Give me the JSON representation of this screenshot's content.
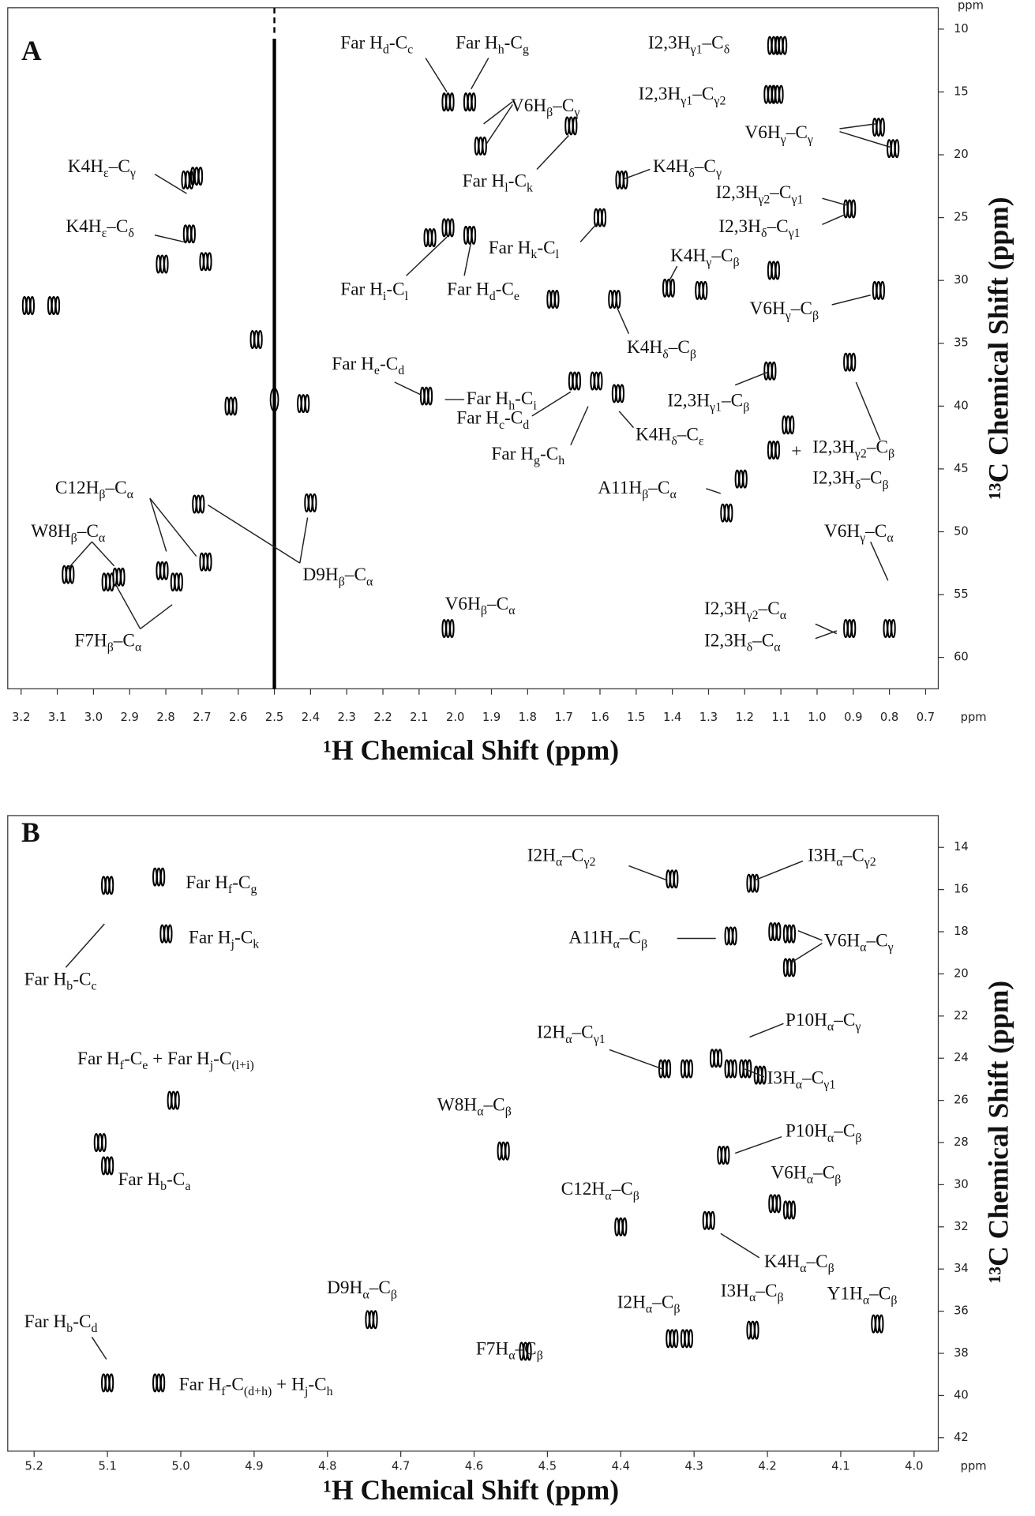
{
  "chart_data": [
    {
      "type": "scatter",
      "label": "A",
      "xlabel": "¹H Chemical Shift (ppm)",
      "ylabel": "¹³C Chemical Shift (ppm)",
      "x_unit": "ppm",
      "y_unit": "ppm",
      "xlim": [
        3.237,
        0.665
      ],
      "ylim": [
        8.3,
        62.5
      ],
      "xticks": [
        3.2,
        3.1,
        {
          "value": 3,
          "label": "3.0"
        },
        2.9,
        2.8,
        2.7,
        2.6,
        2.5,
        2.4,
        2.3,
        2.2,
        2.1,
        {
          "value": 2,
          "label": "2.0"
        },
        1.9,
        1.8,
        1.7,
        1.6,
        1.5,
        1.4,
        1.3,
        1.2,
        1.1,
        {
          "value": 1,
          "label": "1.0"
        },
        0.9,
        0.8,
        0.7
      ],
      "yticks": [
        10,
        15,
        20,
        25,
        30,
        35,
        40,
        45,
        50,
        55,
        60
      ],
      "vlines": [
        2.5
      ],
      "color": "#000000",
      "x": [
        3.18,
        3.11,
        2.81,
        2.69,
        2.735,
        2.74,
        2.715,
        2.55,
        2.62,
        2.42,
        2.71,
        2.69,
        2.81,
        2.77,
        2.96,
        2.93,
        3.07,
        2.4,
        2.02,
        1.96,
        1.93,
        1.68,
        1.54,
        1.12,
        1.1,
        1.13,
        1.11,
        0.83,
        0.79,
        0.91,
        2.02,
        1.96,
        2.07,
        1.6,
        1.12,
        1.41,
        1.32,
        1.73,
        0.83,
        1.56,
        0.91,
        2.08,
        1.67,
        1.61,
        1.55,
        1.13,
        1.08,
        1.12,
        1.21,
        1.25,
        2.02,
        0.91,
        0.8
      ],
      "y": [
        32,
        32,
        28.7,
        28.5,
        26.3,
        22,
        21.7,
        34.7,
        40,
        39.8,
        47.8,
        52.4,
        53.1,
        54,
        54,
        53.6,
        53.4,
        47.7,
        15.8,
        15.8,
        19.3,
        17.7,
        22,
        11.3,
        11.3,
        15.2,
        15.2,
        17.8,
        19.5,
        24.3,
        25.8,
        26.4,
        26.6,
        25,
        29.2,
        30.6,
        30.8,
        31.5,
        30.8,
        31.5,
        36.5,
        39.2,
        38,
        38,
        39,
        37.2,
        41.5,
        43.5,
        45.8,
        48.5,
        57.7,
        57.7,
        57.7
      ],
      "annotations": [
        {
          "parts": [
            "Far H",
            "d",
            "-C",
            "c"
          ]
        },
        {
          "parts": [
            "Far H",
            "h",
            "-C",
            "g"
          ]
        },
        {
          "parts": [
            "V6H",
            "β",
            "–C",
            "γ"
          ]
        },
        {
          "parts": [
            "I2,3H",
            "γ1",
            "–C",
            "δ"
          ]
        },
        {
          "parts": [
            "I2,3H",
            "γ1",
            "–C",
            "γ2"
          ]
        },
        {
          "parts": [
            "K4H",
            "ε",
            "–C",
            "γ"
          ]
        },
        {
          "parts": [
            "Far H",
            "l",
            "-C",
            "k"
          ]
        },
        {
          "parts": [
            "K4H",
            "δ",
            "–C",
            "γ"
          ]
        },
        {
          "parts": [
            "V6H",
            "γ",
            "–C",
            "γ"
          ]
        },
        {
          "parts": [
            "K4H",
            "ε",
            "–C",
            "δ"
          ]
        },
        {
          "parts": [
            "I2,3H",
            "γ2",
            "–C",
            "γ1"
          ]
        },
        {
          "parts": [
            "I2,3H",
            "δ",
            "–C",
            "γ1"
          ]
        },
        {
          "parts": [
            "Far H",
            "k",
            "-C",
            "l"
          ]
        },
        {
          "parts": [
            "Far H",
            "i",
            "-C",
            "l"
          ]
        },
        {
          "parts": [
            "Far H",
            "d",
            "-C",
            "e"
          ]
        },
        {
          "parts": [
            "K4H",
            "γ",
            "–C",
            "β"
          ]
        },
        {
          "parts": [
            "V6H",
            "γ",
            "–C",
            "β"
          ]
        },
        {
          "parts": [
            "K4H",
            "δ",
            "–C",
            "β"
          ]
        },
        {
          "parts": [
            "Far H",
            "e",
            "-C",
            "d"
          ]
        },
        {
          "parts": [
            "Far H",
            "h",
            "-C",
            "i"
          ]
        },
        {
          "parts": [
            "I2,3H",
            "γ1",
            "–C",
            "β"
          ]
        },
        {
          "parts": [
            "Far H",
            "c",
            "-C",
            "d"
          ]
        },
        {
          "parts": [
            "K4H",
            "δ",
            "–C",
            "ε"
          ]
        },
        {
          "parts": [
            "Far H",
            "g",
            "-C",
            "h"
          ]
        },
        {
          "parts": [
            "+"
          ]
        },
        {
          "parts": [
            "I2,3H",
            "γ2",
            "–C",
            "β"
          ]
        },
        {
          "parts": [
            "I2,3H",
            "δ",
            "–C",
            "β"
          ]
        },
        {
          "parts": [
            "C12H",
            "β",
            "–C",
            "α"
          ]
        },
        {
          "parts": [
            "A11H",
            "β",
            "–C",
            "α"
          ]
        },
        {
          "parts": [
            "W8H",
            "β",
            "–C",
            "α"
          ]
        },
        {
          "parts": [
            "D9H",
            "β",
            "–C",
            "α"
          ]
        },
        {
          "parts": [
            "V6H",
            "γ",
            "–C",
            "α"
          ]
        },
        {
          "parts": [
            "F7H",
            "β",
            "–C",
            "α"
          ]
        },
        {
          "parts": [
            "V6H",
            "β",
            "–C",
            "α"
          ]
        },
        {
          "parts": [
            "I2,3H",
            "γ2",
            "–C",
            "α"
          ]
        },
        {
          "parts": [
            "I2,3H",
            "δ",
            "–C",
            "α"
          ]
        }
      ]
    },
    {
      "type": "scatter",
      "label": "B",
      "xlabel": "¹H Chemical Shift (ppm)",
      "ylabel": "¹³C Chemical Shift (ppm)",
      "x_unit": "ppm",
      "xlim": [
        5.236,
        3.967
      ],
      "ylim": [
        12.49,
        42.64
      ],
      "xticks": [
        5.2,
        5.1,
        {
          "value": 5,
          "label": "5.0"
        },
        4.9,
        4.8,
        4.7,
        4.6,
        4.5,
        4.4,
        4.3,
        4.2,
        4.1,
        {
          "value": 4,
          "label": "4.0"
        }
      ],
      "yticks": [
        14,
        16,
        18,
        20,
        22,
        24,
        26,
        28,
        30,
        32,
        34,
        36,
        38,
        40,
        42
      ],
      "color": "#000000",
      "x": [
        5.1,
        5.03,
        5.02,
        5.01,
        5.11,
        5.1,
        4.56,
        4.74,
        4.53,
        5.1,
        5.03,
        4.25,
        4.33,
        4.22,
        4.19,
        4.17,
        4.17,
        4.34,
        4.31,
        4.27,
        4.25,
        4.23,
        4.21,
        4.26,
        4.19,
        4.17,
        4.4,
        4.28,
        4.33,
        4.31,
        4.22,
        4.05
      ],
      "y": [
        15.8,
        15.4,
        18.1,
        26,
        28,
        29.1,
        28.4,
        36.4,
        37.9,
        39.4,
        39.4,
        18.2,
        15.5,
        15.7,
        18,
        18.1,
        19.7,
        24.5,
        24.5,
        24,
        24.5,
        24.5,
        24.8,
        28.6,
        30.9,
        31.2,
        32,
        31.7,
        37.3,
        37.3,
        36.9,
        36.6
      ],
      "annotations": [
        {
          "parts": [
            "Far H",
            "f",
            "-C",
            "g"
          ]
        },
        {
          "parts": [
            "Far H",
            "j",
            "-C",
            "k"
          ]
        },
        {
          "parts": [
            "Far H",
            "b",
            "-C",
            "c"
          ]
        },
        {
          "parts": [
            "I2H",
            "α",
            "–C",
            "γ2"
          ]
        },
        {
          "parts": [
            "I3H",
            "α",
            "–C",
            "γ2"
          ]
        },
        {
          "parts": [
            "A11H",
            "α",
            "–C",
            "β"
          ]
        },
        {
          "parts": [
            "V6H",
            "α",
            "–C",
            "γ"
          ]
        },
        {
          "parts": [
            "Far H",
            "f",
            "-C",
            "e",
            " + Far H",
            "j",
            "-C",
            "(l+i)"
          ]
        },
        {
          "parts": [
            "I2H",
            "α",
            "–C",
            "γ1"
          ]
        },
        {
          "parts": [
            "P10H",
            "α",
            "–C",
            "γ"
          ]
        },
        {
          "parts": [
            "I3H",
            "α",
            "–C",
            "γ1"
          ]
        },
        {
          "parts": [
            "W8H",
            "α",
            "–C",
            "β"
          ]
        },
        {
          "parts": [
            "P10H",
            "α",
            "–C",
            "β"
          ]
        },
        {
          "parts": [
            "Far H",
            "b",
            "-C",
            "a"
          ]
        },
        {
          "parts": [
            "V6H",
            "α",
            "–C",
            "β"
          ]
        },
        {
          "parts": [
            "C12H",
            "α",
            "–C",
            "β"
          ]
        },
        {
          "parts": [
            "K4H",
            "α",
            "–C",
            "β"
          ]
        },
        {
          "parts": [
            "D9H",
            "α",
            "–C",
            "β"
          ]
        },
        {
          "parts": [
            "F7H",
            "α",
            "–C",
            "β"
          ]
        },
        {
          "parts": [
            "I2H",
            "α",
            "–C",
            "β"
          ]
        },
        {
          "parts": [
            "I3H",
            "α",
            "–C",
            "β"
          ]
        },
        {
          "parts": [
            "Y1H",
            "α",
            "–C",
            "β"
          ]
        },
        {
          "parts": [
            "Far H",
            "b",
            "-C",
            "d"
          ]
        },
        {
          "parts": [
            "Far H",
            "f",
            "-C",
            "(d+h)",
            " + H",
            "j",
            "-C",
            "h"
          ]
        }
      ]
    }
  ]
}
